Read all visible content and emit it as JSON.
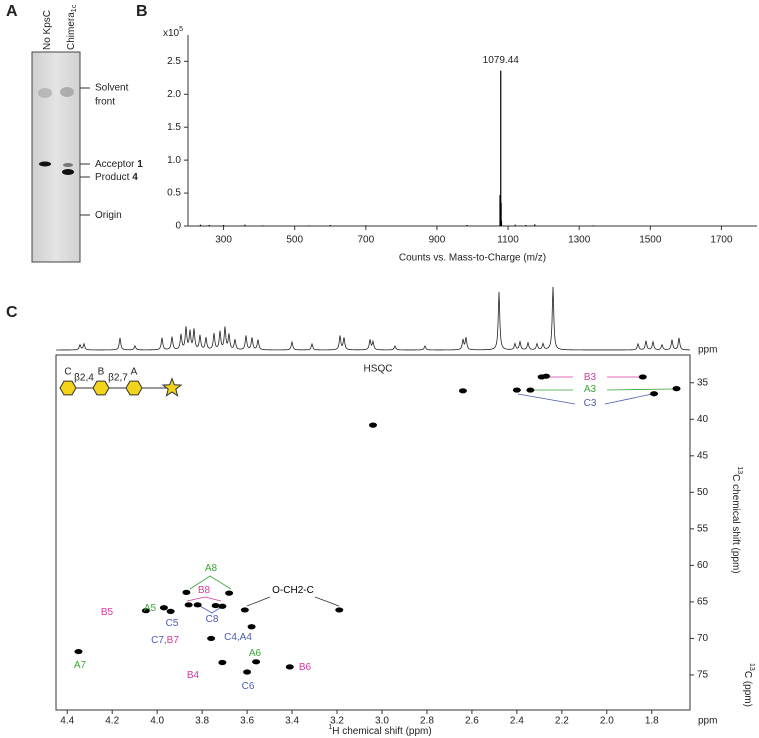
{
  "gel": {
    "label": "A",
    "lanes": [
      {
        "parts": [
          {
            "text": "No KpsC"
          }
        ]
      },
      {
        "parts": [
          {
            "text": "Chimera"
          },
          {
            "text": "1c",
            "sub": true
          }
        ]
      }
    ],
    "markers": [
      {
        "lines": [
          "Solvent",
          "front"
        ]
      },
      {
        "parts": [
          {
            "text": "Acceptor "
          },
          {
            "text": "1",
            "bold": true
          }
        ]
      },
      {
        "parts": [
          {
            "text": "Product "
          },
          {
            "text": "4",
            "bold": true
          }
        ]
      },
      {
        "parts": [
          {
            "text": "Origin"
          }
        ]
      }
    ]
  },
  "chart_data": [
    {
      "type": "stick",
      "label": "B",
      "y_multiplier": {
        "base": "x10",
        "exp": "5"
      },
      "xlabel": "Counts vs. Mass-to-Charge (m/z)",
      "color": "#000000",
      "x": [
        235,
        260,
        300,
        360,
        410,
        540,
        600,
        700,
        985,
        1077.4,
        1078.4,
        1079.44,
        1080.44,
        1081.44,
        1120,
        1150,
        1175,
        1340
      ],
      "values": [
        0.02,
        0.015,
        0.015,
        0.02,
        0.01,
        0.01,
        0.015,
        0.01,
        0.015,
        0.47,
        0.41,
        2.36,
        0.35,
        0.08,
        0.02,
        0.015,
        0.025,
        0.01
      ],
      "annotations": [
        {
          "text": "1079.44",
          "x": 1079.44,
          "y": 2.36
        }
      ],
      "xlim": [
        200,
        1800
      ],
      "ylim": [
        0,
        2.9
      ],
      "xticks": [
        300,
        500,
        700,
        900,
        1100,
        1300,
        1500,
        1700
      ],
      "yticks": [
        0,
        0.5,
        {
          "value": 1,
          "label": "1.0"
        },
        1.5,
        {
          "value": 2,
          "label": "2.0"
        },
        2.5
      ]
    },
    {
      "type": "scatter",
      "label": "C",
      "title": "HSQC",
      "top_axis_unit": "ppm",
      "x_unit": "ppm",
      "xlabel": {
        "sup": "1",
        "text": "H chemical shift (ppm)"
      },
      "ylabel": {
        "sup": "13",
        "text": "C chemical shift (ppm)"
      },
      "ylabel2": {
        "sup": "13",
        "text": "C (ppm)"
      },
      "color": "#000000",
      "x": [
        4.35,
        4.05,
        3.97,
        3.94,
        3.87,
        3.86,
        3.82,
        3.76,
        3.74,
        3.71,
        3.68,
        3.71,
        3.61,
        3.6,
        3.58,
        3.56,
        3.41,
        3.19,
        3.04,
        2.64,
        2.4,
        2.34,
        2.29,
        2.27,
        1.84,
        1.79,
        1.69
      ],
      "values": [
        71.8,
        66.2,
        65.8,
        66.3,
        63.7,
        65.4,
        65.4,
        70.0,
        65.5,
        73.3,
        63.8,
        65.6,
        66.1,
        74.6,
        68.4,
        73.2,
        73.9,
        66.1,
        40.8,
        36.1,
        36.0,
        36.0,
        34.2,
        34.1,
        34.2,
        36.5,
        35.8
      ],
      "structure": {
        "residues": [
          {
            "text": "C",
            "color": "#4a5bb5"
          },
          {
            "text": "B",
            "color": "#d63a9c"
          },
          {
            "text": "A",
            "color": "#3aa535"
          }
        ],
        "linkages": [
          "β2,4",
          "β2,7"
        ]
      },
      "annotations": [
        {
          "parts": [
            {
              "text": "A7",
              "color": "#3aa535"
            }
          ]
        },
        {
          "parts": [
            {
              "text": "B5",
              "color": "#d63a9c"
            }
          ]
        },
        {
          "parts": [
            {
              "text": "A5",
              "color": "#3aa535"
            }
          ]
        },
        {
          "parts": [
            {
              "text": "C5",
              "color": "#4a5bb5"
            }
          ]
        },
        {
          "parts": [
            {
              "text": "A8",
              "color": "#3aa535"
            }
          ]
        },
        {
          "parts": [
            {
              "text": "B8",
              "color": "#d63a9c"
            }
          ]
        },
        {
          "parts": [
            {
              "text": "C8",
              "color": "#4a5bb5"
            }
          ]
        },
        {
          "parts": [
            {
              "text": "C7,",
              "color": "#4a5bb5"
            },
            {
              "text": "B7",
              "color": "#d63a9c"
            }
          ]
        },
        {
          "parts": [
            {
              "text": "C4,A4",
              "color": "#4a5bb5"
            }
          ]
        },
        {
          "parts": [
            {
              "text": "B4",
              "color": "#d63a9c"
            }
          ]
        },
        {
          "parts": [
            {
              "text": "A6",
              "color": "#3aa535"
            }
          ]
        },
        {
          "parts": [
            {
              "text": "C6",
              "color": "#4a5bb5"
            }
          ]
        },
        {
          "parts": [
            {
              "text": "B6",
              "color": "#d63a9c"
            }
          ]
        },
        {
          "parts": [
            {
              "text": "O-CH2-C",
              "color": "#000000"
            }
          ]
        },
        {
          "parts": [
            {
              "text": "B3",
              "color": "#d63a9c"
            }
          ]
        },
        {
          "parts": [
            {
              "text": "A3",
              "color": "#3aa535"
            }
          ]
        },
        {
          "parts": [
            {
              "text": "C3",
              "color": "#4a5bb5"
            }
          ]
        }
      ],
      "xlim": [
        4.45,
        1.63
      ],
      "ylim": [
        79.8,
        31.2
      ],
      "xticks": [
        4.4,
        4.2,
        {
          "value": 4,
          "label": "4.0"
        },
        3.8,
        3.6,
        3.4,
        3.2,
        {
          "value": 3,
          "label": "3.0"
        },
        2.8,
        2.6,
        2.4,
        2.2,
        {
          "value": 2,
          "label": "2.0"
        },
        1.8
      ],
      "yticks": [
        35,
        40,
        45,
        50,
        55,
        60,
        65,
        70,
        75
      ]
    }
  ]
}
